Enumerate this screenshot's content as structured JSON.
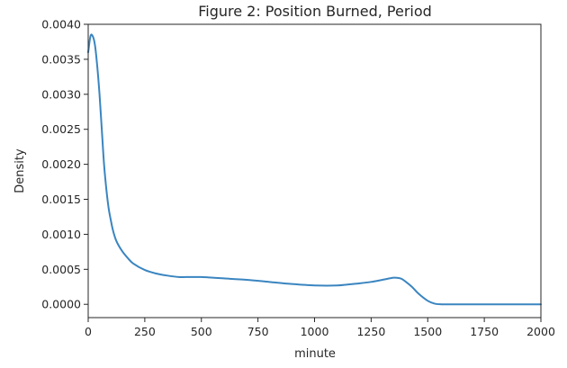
{
  "chart_data": {
    "type": "line",
    "title": "Figure 2: Position Burned, Period",
    "xlabel": "minute",
    "ylabel": "Density",
    "xlim": [
      0,
      2000
    ],
    "ylim": [
      -0.00019,
      0.004
    ],
    "grid": false,
    "x_ticks": [
      0,
      250,
      500,
      750,
      1000,
      1250,
      1500,
      1750,
      2000
    ],
    "x_tick_labels": [
      "0",
      "250",
      "500",
      "750",
      "1000",
      "1250",
      "1500",
      "1750",
      "2000"
    ],
    "y_ticks": [
      0.0,
      0.0005,
      0.001,
      0.0015,
      0.002,
      0.0025,
      0.003,
      0.0035,
      0.004
    ],
    "y_tick_labels": [
      "0.0000",
      "0.0005",
      "0.0010",
      "0.0015",
      "0.0020",
      "0.0025",
      "0.0030",
      "0.0035",
      "0.0040"
    ],
    "series": [
      {
        "color": "#3a85c0",
        "x": [
          0,
          10,
          20,
          30,
          40,
          50,
          60,
          70,
          80,
          90,
          100,
          110,
          125,
          150,
          175,
          200,
          250,
          300,
          350,
          400,
          450,
          500,
          550,
          600,
          700,
          800,
          900,
          1000,
          1100,
          1200,
          1250,
          1300,
          1350,
          1380,
          1400,
          1430,
          1460,
          1500,
          1530,
          1560,
          1600,
          1700,
          1800,
          1900,
          2000
        ],
        "y": [
          0.0036,
          0.00383,
          0.00383,
          0.0037,
          0.0034,
          0.003,
          0.0025,
          0.002,
          0.00165,
          0.00138,
          0.0012,
          0.00105,
          0.0009,
          0.00076,
          0.00066,
          0.00058,
          0.00049,
          0.00044,
          0.00041,
          0.00039,
          0.00039,
          0.00039,
          0.00038,
          0.00037,
          0.00035,
          0.00032,
          0.00029,
          0.00027,
          0.00027,
          0.0003,
          0.00032,
          0.00035,
          0.00038,
          0.00037,
          0.00033,
          0.00025,
          0.00015,
          5e-05,
          1e-05,
          0.0,
          0.0,
          0.0,
          0.0,
          0.0,
          0.0
        ]
      }
    ]
  }
}
